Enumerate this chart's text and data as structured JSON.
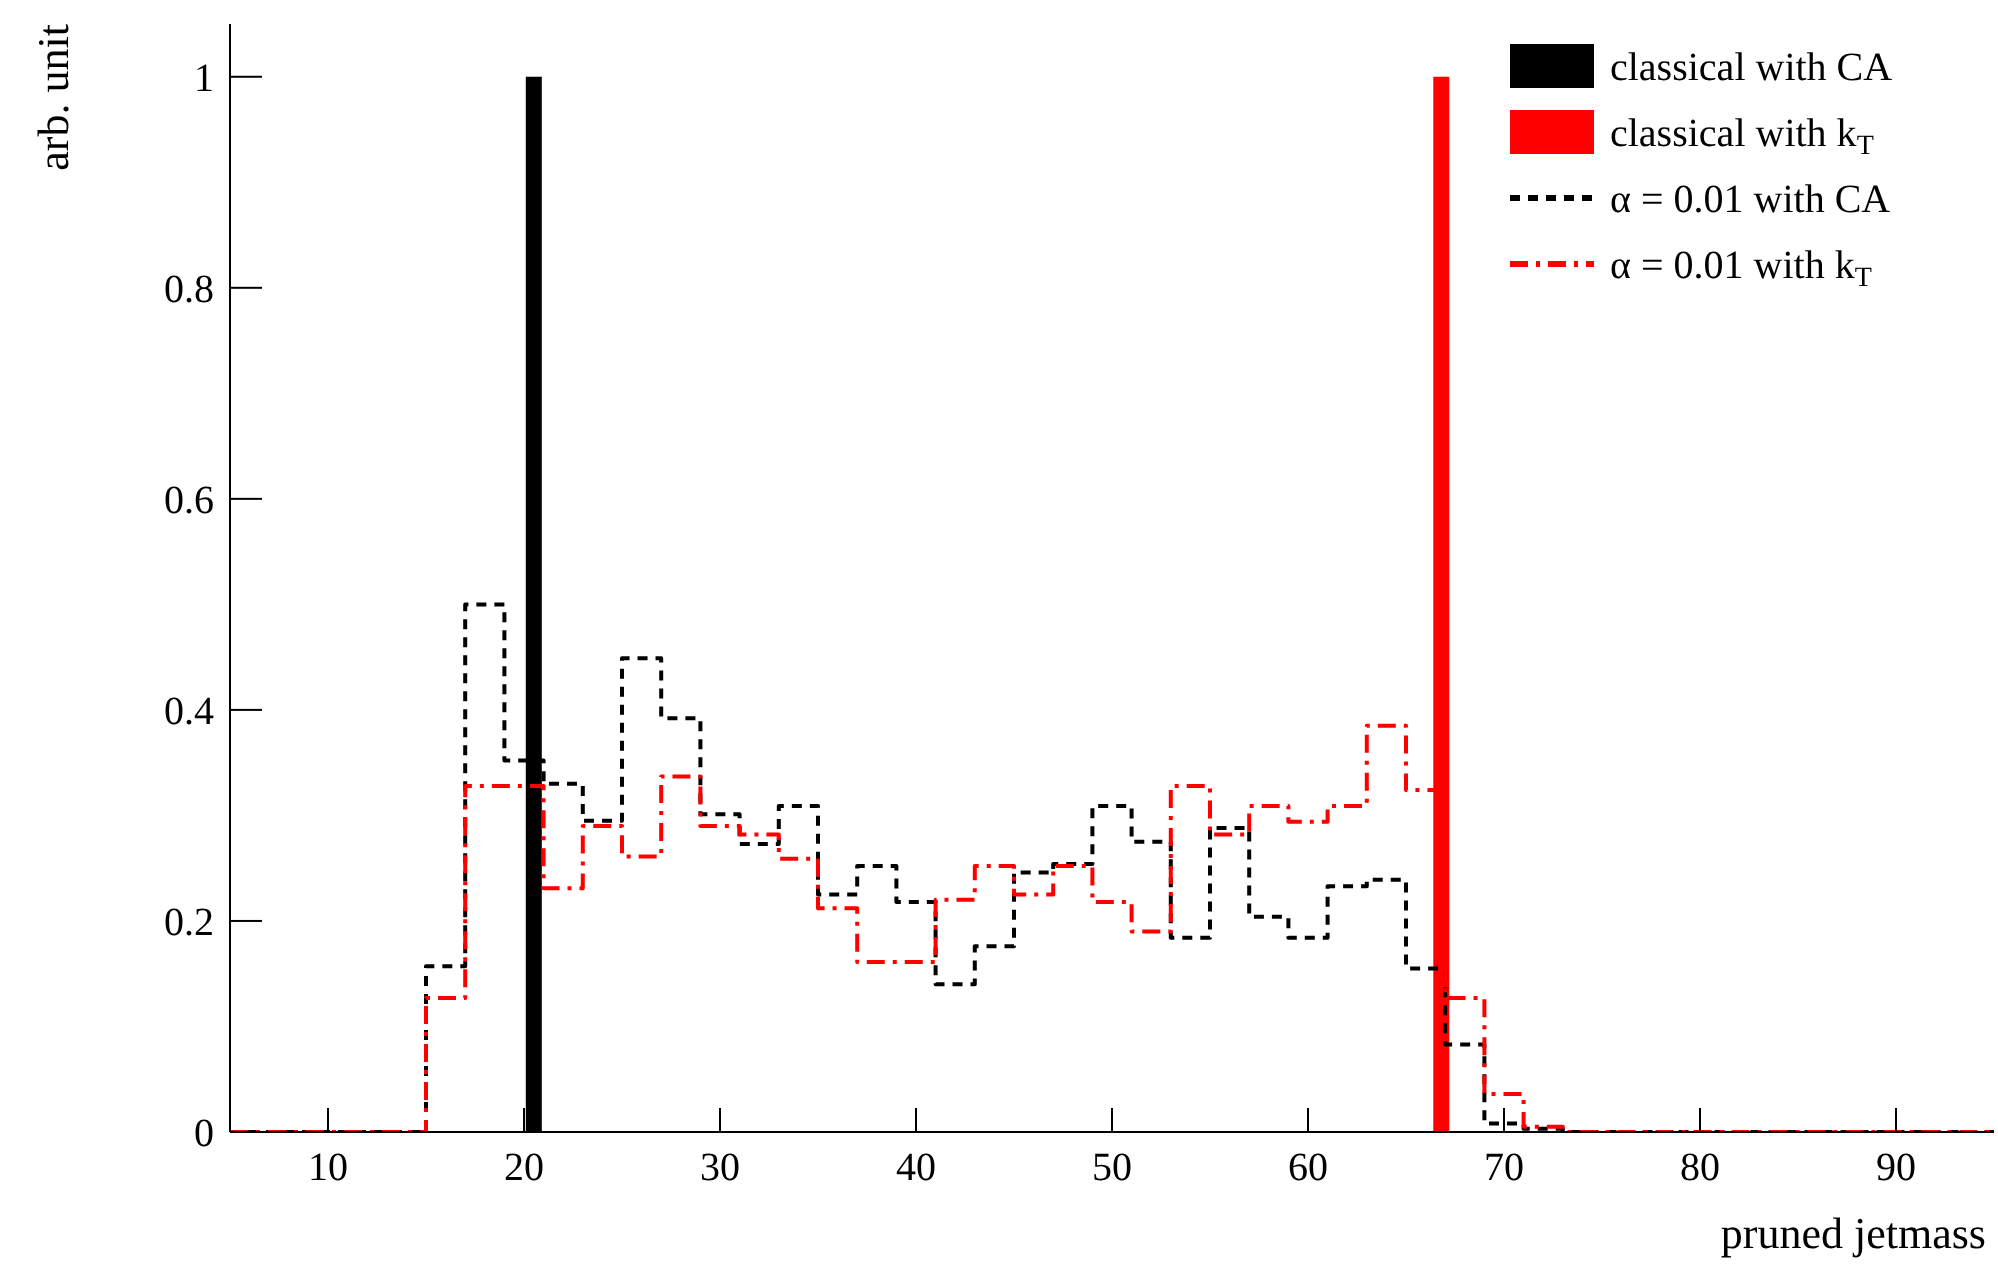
{
  "chart_data": {
    "type": "histogram",
    "xlabel": "pruned jetmass",
    "ylabel": "arb. unit",
    "bins": [
      5,
      7,
      9,
      11,
      13,
      15,
      17,
      19,
      21,
      23,
      25,
      27,
      29,
      31,
      33,
      35,
      37,
      39,
      41,
      43,
      45,
      47,
      49,
      51,
      53,
      55,
      57,
      59,
      61,
      63,
      65,
      67,
      69,
      71,
      73,
      75,
      77,
      79,
      81,
      83,
      85,
      87,
      89,
      91,
      93,
      95
    ],
    "series": [
      {
        "name": "classical with CA",
        "type": "bar",
        "x": [
          20.5
        ],
        "values": [
          1
        ],
        "color": "#000000"
      },
      {
        "name": "classical with k$_{T}$",
        "type": "bar",
        "x": [
          66.8
        ],
        "values": [
          1
        ],
        "color": "#ff0000"
      },
      {
        "name": "α = 0.01 with CA",
        "color": "#000000",
        "line_style": "dashed",
        "values": [
          0,
          0,
          0,
          0,
          0,
          0.157,
          0.5,
          0.352,
          0.33,
          0.295,
          0.449,
          0.392,
          0.301,
          0.273,
          0.309,
          0.225,
          0.252,
          0.218,
          0.14,
          0.176,
          0.246,
          0.254,
          0.309,
          0.275,
          0.184,
          0.288,
          0.204,
          0.184,
          0.233,
          0.239,
          0.155,
          0.083,
          0.008,
          0.003,
          0,
          0,
          0,
          0,
          0,
          0,
          0,
          0,
          0,
          0,
          0
        ]
      },
      {
        "name": "α = 0.01 with k$_{T}$",
        "color": "#ff0000",
        "line_style": "dashdot",
        "values": [
          0,
          0,
          0,
          0,
          0,
          0.127,
          0.328,
          0.328,
          0.231,
          0.29,
          0.261,
          0.337,
          0.29,
          0.282,
          0.259,
          0.212,
          0.161,
          0.161,
          0.22,
          0.252,
          0.225,
          0.252,
          0.218,
          0.19,
          0.328,
          0.282,
          0.309,
          0.294,
          0.309,
          0.385,
          0.324,
          0.127,
          0.036,
          0.005,
          0,
          0,
          0,
          0,
          0,
          0,
          0,
          0,
          0,
          0,
          0
        ]
      }
    ],
    "xlim": [
      5,
      95
    ],
    "xticks": [
      10,
      20,
      30,
      40,
      50,
      60,
      70,
      80,
      90
    ],
    "ylim": [
      0,
      1.05
    ],
    "yticks": [
      0,
      0.2,
      0.4,
      0.6,
      0.8,
      1
    ],
    "legend": "top right"
  }
}
